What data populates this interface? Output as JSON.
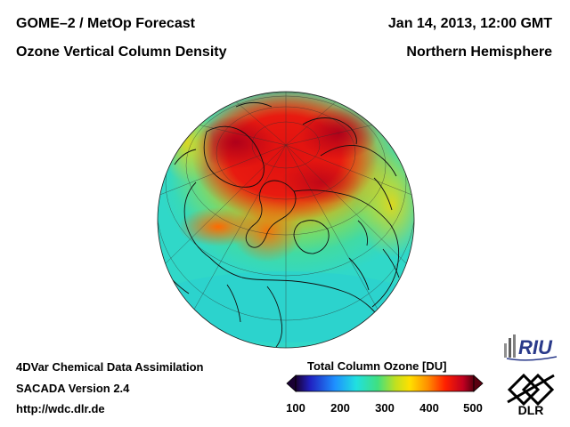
{
  "header": {
    "title_left_1": "GOME–2 / MetOp Forecast",
    "title_left_2": "Ozone Vertical Column Density",
    "title_right_1": "Jan 14, 2013, 12:00 GMT",
    "title_right_2": "Northern Hemisphere"
  },
  "footer": {
    "line1": "4DVar Chemical Data Assimilation",
    "line2": "SACADA Version 2.4",
    "line3": "http://wdc.dlr.de"
  },
  "colorbar": {
    "title": "Total Column Ozone [DU]",
    "ticks": [
      "100",
      "200",
      "300",
      "400",
      "500"
    ],
    "colors": [
      "#1a0033",
      "#2020c0",
      "#1e90ff",
      "#20e0e0",
      "#40e080",
      "#c0e020",
      "#ffe000",
      "#ff9000",
      "#ff2000",
      "#c00020",
      "#5a0010"
    ]
  },
  "logos": {
    "riu": "RIU",
    "dlr": "DLR"
  },
  "map": {
    "projection": "orthographic",
    "hemisphere": "Northern Hemisphere"
  }
}
